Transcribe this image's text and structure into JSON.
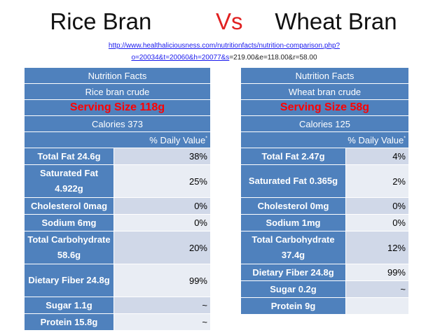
{
  "title": {
    "left": "Rice Bran",
    "vs": "Vs",
    "right": "Wheat Bran"
  },
  "source": {
    "url": "http://www.healthaliciousness.com/nutritionfacts/nutrition-comparison.php?o=20034&t=20060&h=20077&s",
    "suffix": "=219.00&e=118.00&r=58.00"
  },
  "tables": {
    "left": {
      "header": "Nutrition Facts",
      "name": "Rice bran crude",
      "serving": "Serving Size 118g",
      "calories": "Calories 373",
      "daily_value": "% Daily Value",
      "daily_value_mark": "*",
      "rows": [
        {
          "label": "Total Fat 24.6g",
          "value": "38%"
        },
        {
          "label": "Saturated Fat 4.922g",
          "value": "25%"
        },
        {
          "label": "Cholesterol 0mag",
          "value": "0%"
        },
        {
          "label": "Sodium 6mg",
          "value": "0%"
        },
        {
          "label": "Total Carbohydrate 58.6g",
          "value": "20%"
        },
        {
          "label": "Dietary Fiber 24.8g",
          "value": "99%"
        },
        {
          "label": "Sugar 1.1g",
          "value": "~"
        },
        {
          "label": "Protein 15.8g",
          "value": "~"
        }
      ]
    },
    "right": {
      "header": "Nutrition Facts",
      "name": "Wheat bran crude",
      "serving": "Serving Size 58g",
      "calories": "Calories 125",
      "daily_value": "% Daily Value",
      "daily_value_mark": "*",
      "rows": [
        {
          "label": "Total Fat 2.47g",
          "value": "4%"
        },
        {
          "label": "Saturated Fat 0.365g",
          "value": "2%"
        },
        {
          "label": "Cholesterol 0mg",
          "value": "0%"
        },
        {
          "label": "Sodium 1mg",
          "value": "0%"
        },
        {
          "label": "Total Carbohydrate 37.4g",
          "value": "12%"
        },
        {
          "label": "Dietary Fiber 24.8g",
          "value": "99%"
        },
        {
          "label": "Sugar 0.2g",
          "value": "~"
        },
        {
          "label": "Protein 9g",
          "value": ""
        }
      ]
    }
  },
  "colors": {
    "header_blue": "#4f81bd",
    "row_light": "#e9edf4",
    "row_alt": "#d0d8e8",
    "vs_red": "#e02020",
    "serving_red": "#ff0000"
  }
}
